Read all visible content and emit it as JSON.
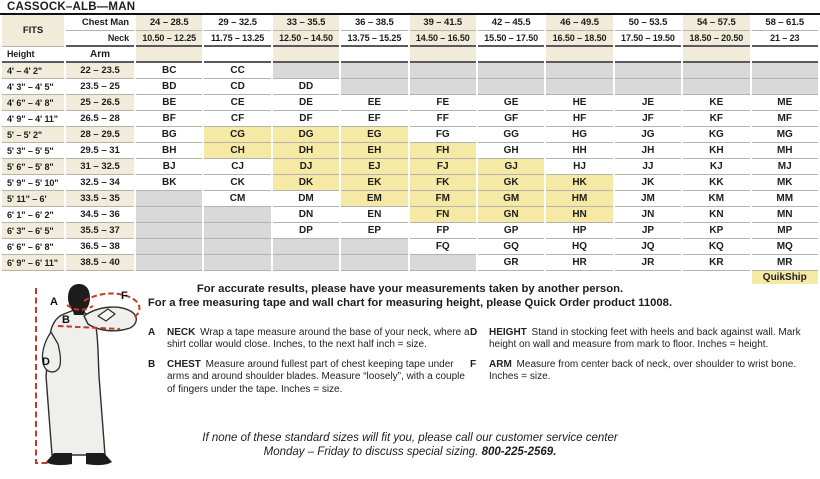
{
  "title": "CASSOCK–ALB—MAN",
  "colors": {
    "cream": "#f1ecda",
    "quikship_yellow": "#f6e9a5",
    "empty_gray": "#d9d9d9",
    "measure_red": "#c43c28"
  },
  "size_table": {
    "fits_label": "FITS",
    "chest_row_label": "Chest Man",
    "neck_row_label": "Neck",
    "height_col_label": "Height",
    "arm_col_label": "Arm",
    "chest_ranges": [
      "24 – 28.5",
      "29 – 32.5",
      "33 – 35.5",
      "36 – 38.5",
      "39 – 41.5",
      "42 – 45.5",
      "46 – 49.5",
      "50 – 53.5",
      "54 – 57.5",
      "58 – 61.5"
    ],
    "neck_ranges": [
      "10.50 – 12.25",
      "11.75 – 13.25",
      "12.50 – 14.50",
      "13.75 – 15.25",
      "14.50 – 16.50",
      "15.50 – 17.50",
      "16.50 – 18.50",
      "17.50 – 19.50",
      "18.50 – 20.50",
      "21 – 23"
    ],
    "rows": [
      {
        "height": "4' – 4' 2\"",
        "arm": "22 – 23.5",
        "codes": [
          "BC",
          "CC",
          "",
          "",
          "",
          "",
          "",
          "",
          "",
          ""
        ]
      },
      {
        "height": "4' 3\" – 4' 5\"",
        "arm": "23.5 – 25",
        "codes": [
          "BD",
          "CD",
          "DD",
          "",
          "",
          "",
          "",
          "",
          "",
          ""
        ]
      },
      {
        "height": "4' 6\" – 4' 8\"",
        "arm": "25 – 26.5",
        "codes": [
          "BE",
          "CE",
          "DE",
          "EE",
          "FE",
          "GE",
          "HE",
          "JE",
          "KE",
          "ME"
        ]
      },
      {
        "height": "4' 9\" – 4' 11\"",
        "arm": "26.5 – 28",
        "codes": [
          "BF",
          "CF",
          "DF",
          "EF",
          "FF",
          "GF",
          "HF",
          "JF",
          "KF",
          "MF"
        ]
      },
      {
        "height": "5' – 5' 2\"",
        "arm": "28 – 29.5",
        "codes": [
          "BG",
          "CG",
          "DG",
          "EG",
          "FG",
          "GG",
          "HG",
          "JG",
          "KG",
          "MG"
        ]
      },
      {
        "height": "5' 3\" – 5' 5\"",
        "arm": "29.5 – 31",
        "codes": [
          "BH",
          "CH",
          "DH",
          "EH",
          "FH",
          "GH",
          "HH",
          "JH",
          "KH",
          "MH"
        ]
      },
      {
        "height": "5' 6\" – 5' 8\"",
        "arm": "31 – 32.5",
        "codes": [
          "BJ",
          "CJ",
          "DJ",
          "EJ",
          "FJ",
          "GJ",
          "HJ",
          "JJ",
          "KJ",
          "MJ"
        ]
      },
      {
        "height": "5' 9\" – 5' 10\"",
        "arm": "32.5 – 34",
        "codes": [
          "BK",
          "CK",
          "DK",
          "EK",
          "FK",
          "GK",
          "HK",
          "JK",
          "KK",
          "MK"
        ]
      },
      {
        "height": "5' 11\" – 6'",
        "arm": "33.5 – 35",
        "codes": [
          "",
          "CM",
          "DM",
          "EM",
          "FM",
          "GM",
          "HM",
          "JM",
          "KM",
          "MM"
        ]
      },
      {
        "height": "6' 1\" – 6' 2\"",
        "arm": "34.5 – 36",
        "codes": [
          "",
          "",
          "DN",
          "EN",
          "FN",
          "GN",
          "HN",
          "JN",
          "KN",
          "MN"
        ]
      },
      {
        "height": "6' 3\" – 6' 5\"",
        "arm": "35.5 – 37",
        "codes": [
          "",
          "",
          "DP",
          "EP",
          "FP",
          "GP",
          "HP",
          "JP",
          "KP",
          "MP"
        ]
      },
      {
        "height": "6' 6\" – 6' 8\"",
        "arm": "36.5 – 38",
        "codes": [
          "",
          "",
          "",
          "",
          "FQ",
          "GQ",
          "HQ",
          "JQ",
          "KQ",
          "MQ"
        ]
      },
      {
        "height": "6' 9\" – 6' 11\"",
        "arm": "38.5 – 40",
        "codes": [
          "",
          "",
          "",
          "",
          "",
          "GR",
          "HR",
          "JR",
          "KR",
          "MR"
        ]
      }
    ],
    "quikship_highlighted_codes": [
      "CG",
      "DG",
      "EG",
      "CH",
      "DH",
      "EH",
      "FH",
      "DJ",
      "EJ",
      "FJ",
      "GJ",
      "DK",
      "EK",
      "FK",
      "GK",
      "HK",
      "EM",
      "FM",
      "GM",
      "HM",
      "FN",
      "GN",
      "HN"
    ],
    "quikship_label": "QuikShip"
  },
  "figure": {
    "labels": [
      "A",
      "B",
      "D",
      "F"
    ]
  },
  "notes": {
    "lead_line1": "For accurate results, please have your measurements taken by another person.",
    "lead_line2": "For a free measuring tape and wall chart for measuring height, please Quick Order product 11008.",
    "instructions": [
      {
        "letter": "A",
        "term": "NECK",
        "text": "Wrap a tape measure around the base of your neck, where a shirt collar would close. Inches, to the next half inch = size."
      },
      {
        "letter": "B",
        "term": "CHEST",
        "text": "Measure around fullest part of chest keeping tape under arms and around shoulder blades. Measure “loosely”, with a couple of fingers under the tape. Inches = size."
      },
      {
        "letter": "D",
        "term": "HEIGHT",
        "text": "Stand in stocking feet with heels and back against wall. Mark height on wall and measure from mark to floor. Inches = height."
      },
      {
        "letter": "F",
        "term": "ARM",
        "text": "Measure from center back of neck, over shoulder to wrist bone. Inches = size."
      }
    ],
    "footer_line1": "If none of these standard sizes will fit you, please call our customer service center",
    "footer_line2": "Monday – Friday to discuss special sizing.",
    "footer_phone": "800-225-2569."
  }
}
